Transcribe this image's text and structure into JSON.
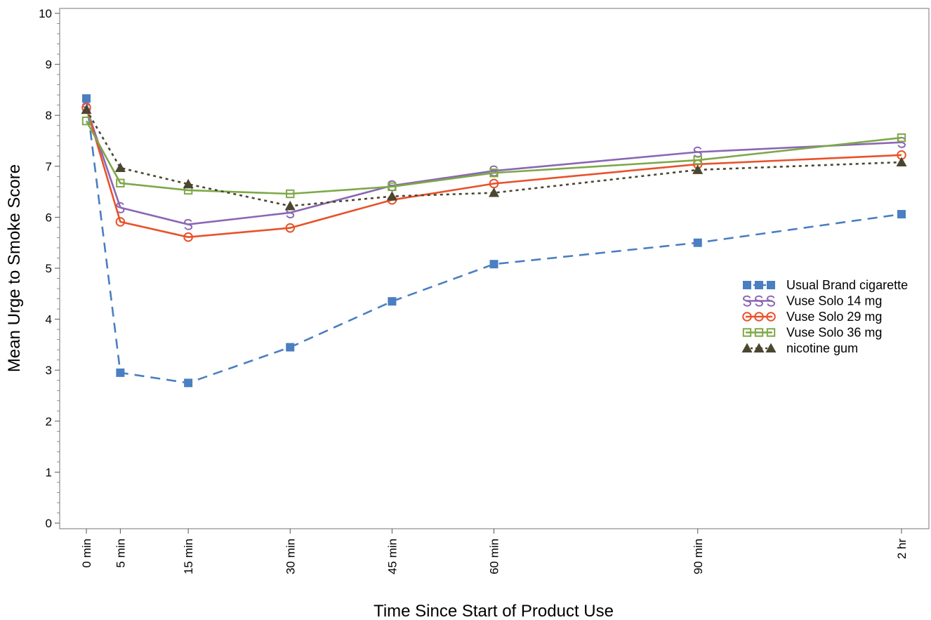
{
  "chart_data": {
    "type": "line",
    "title": "",
    "xlabel": "Time Since Start of Product Use",
    "ylabel": "Mean Urge to Smoke Score",
    "x": [
      0,
      5,
      15,
      30,
      45,
      60,
      90,
      120
    ],
    "x_tick_labels": [
      "0 min",
      "5 min",
      "15 min",
      "30 min",
      "45 min",
      "60 min",
      "90 min",
      "2 hr"
    ],
    "xlim": [
      0,
      120
    ],
    "ylim": [
      0,
      10
    ],
    "y_ticks": [
      0,
      1,
      2,
      3,
      4,
      5,
      6,
      7,
      8,
      9,
      10
    ],
    "grid": false,
    "legend_position": "right-middle",
    "series": [
      {
        "name": "Usual Brand cigarette",
        "values": [
          8.33,
          2.95,
          2.75,
          3.45,
          4.35,
          5.08,
          5.5,
          6.06
        ],
        "color": "#4a7fc1",
        "line": "dashed",
        "marker": "filled-square"
      },
      {
        "name": "Vuse Solo 14 mg",
        "values": [
          8.15,
          6.19,
          5.86,
          6.09,
          6.62,
          6.91,
          7.28,
          7.47
        ],
        "color": "#8b66b4",
        "line": "solid",
        "marker": "S"
      },
      {
        "name": "Vuse Solo 29 mg",
        "values": [
          8.15,
          5.91,
          5.61,
          5.79,
          6.34,
          6.66,
          7.04,
          7.22
        ],
        "color": "#e8522a",
        "line": "solid",
        "marker": "open-circle"
      },
      {
        "name": "Vuse Solo 36 mg",
        "values": [
          7.89,
          6.67,
          6.53,
          6.46,
          6.6,
          6.87,
          7.12,
          7.56
        ],
        "color": "#7ea848",
        "line": "solid",
        "marker": "open-square"
      },
      {
        "name": "nicotine gum",
        "values": [
          8.11,
          6.97,
          6.65,
          6.22,
          6.41,
          6.48,
          6.93,
          7.08
        ],
        "color": "#4a4630",
        "line": "dotted",
        "marker": "filled-triangle"
      }
    ]
  }
}
